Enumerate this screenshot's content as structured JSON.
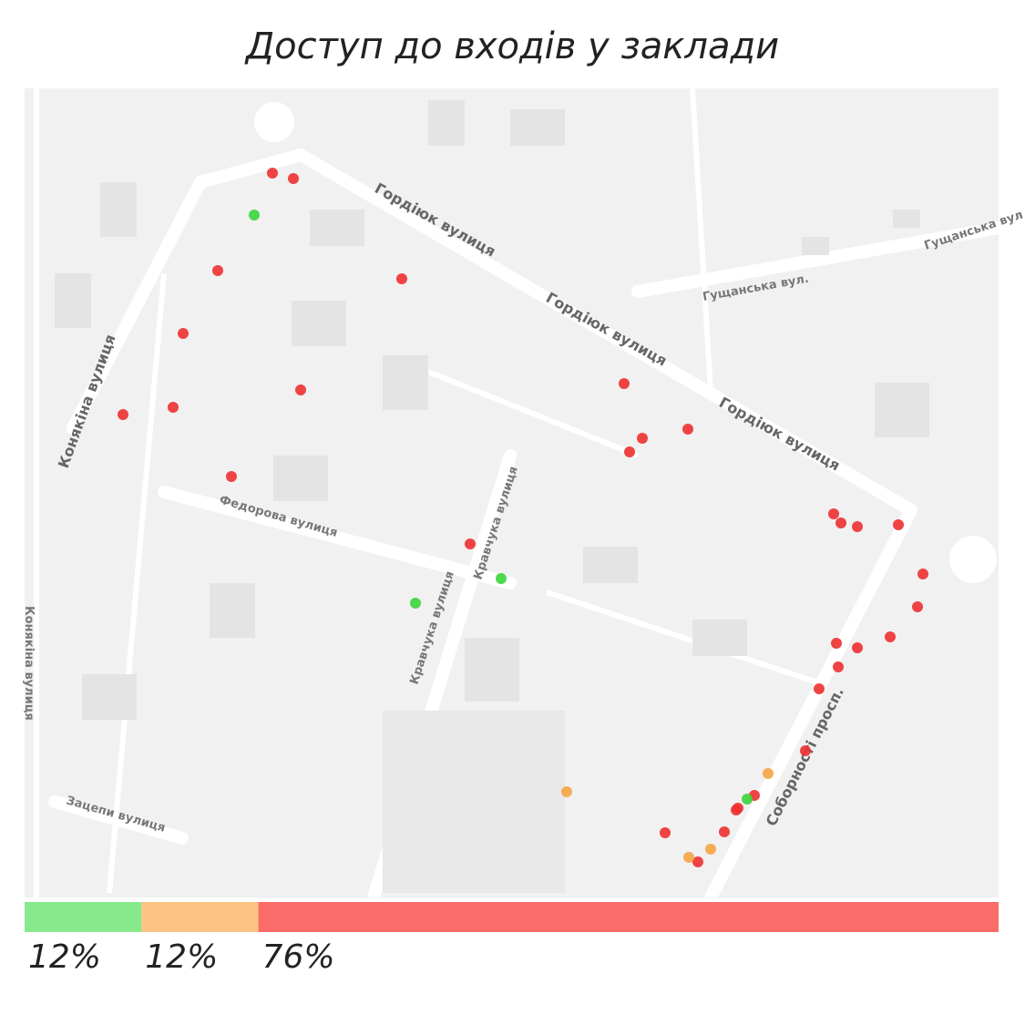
{
  "title": "Доступ до входів у заклади",
  "map": {
    "street_labels": [
      "Гордіюк вулиця",
      "Гущанська вул.",
      "Гущанська вул",
      "Конякіна вулиця",
      "Федорова вулиця",
      "Кравчука вулиця",
      "Соборності просп.",
      "Зацепи вулиця"
    ]
  },
  "bar": {
    "segments": [
      {
        "color": "#86e98c",
        "value": 12,
        "value_label": "12%"
      },
      {
        "color": "#fcc482",
        "value": 12,
        "value_label": "12%"
      },
      {
        "color": "#f96c6a",
        "value": 76,
        "value_label": "76%"
      }
    ]
  }
}
